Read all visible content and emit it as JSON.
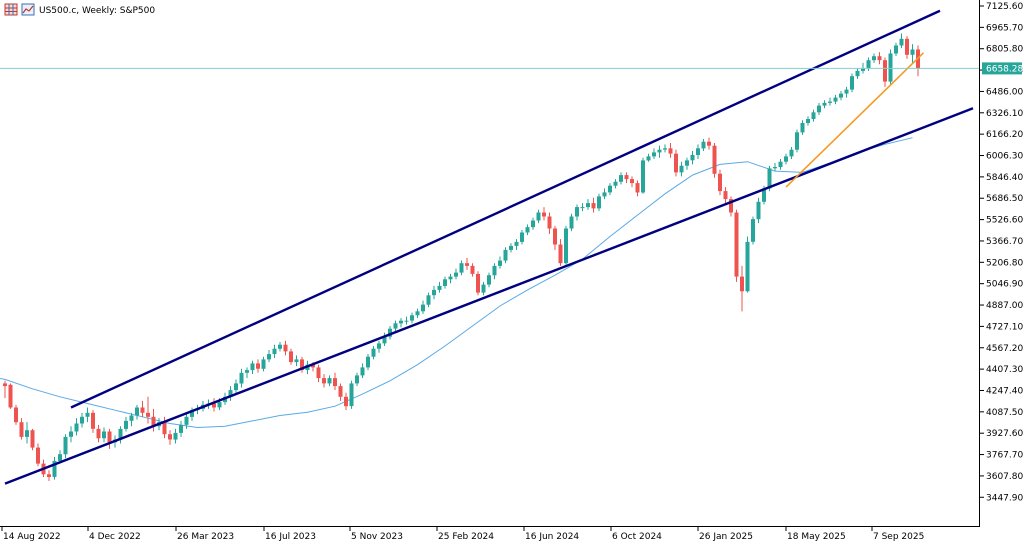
{
  "window": {
    "title": "US500.c, Weekly:  S&P500",
    "icons": [
      "chart-grid-icon",
      "chart-type-icon"
    ]
  },
  "colors": {
    "background": "#ffffff",
    "bull_candle": "#26a69a",
    "bear_candle": "#ef5350",
    "channel": "#000080",
    "trendline": "#f59a23",
    "moving_average": "#5aa9e6",
    "price_line": "#7fd1cf",
    "price_label_bg": "#26a69a",
    "price_label_text": "#ffffff"
  },
  "chart_data": {
    "type": "candlestick",
    "instrument": "US500.c",
    "timeframe": "Weekly",
    "title": "US500.c, Weekly:  S&P500",
    "ylim": [
      3367.6,
      7125.6
    ],
    "y_ticks": [
      "7125.60",
      "6965.70",
      "6805.80",
      "6646.00",
      "6486.00",
      "6326.10",
      "6166.20",
      "6006.30",
      "5846.40",
      "5686.50",
      "5526.60",
      "5366.70",
      "5206.80",
      "5046.90",
      "4887.00",
      "4727.10",
      "4567.20",
      "4407.30",
      "4247.40",
      "4087.50",
      "3927.60",
      "3767.70",
      "3607.80",
      "3447.90"
    ],
    "x_ticks": [
      "14 Aug 2022",
      "4 Dec 2022",
      "26 Mar 2023",
      "16 Jul 2023",
      "5 Nov 2023",
      "25 Feb 2024",
      "16 Jun 2024",
      "6 Oct 2024",
      "26 Jan 2025",
      "18 May 2025",
      "7 Sep 2025"
    ],
    "current_price": "6658.28",
    "current_price_value": 6658.28,
    "grid": false,
    "legend": "none",
    "channel_lines": [
      {
        "name": "upper-channel",
        "start": {
          "week": 12,
          "price": 4120
        },
        "end": {
          "week": 170,
          "price": 7090
        }
      },
      {
        "name": "lower-channel",
        "start": {
          "week": 0,
          "price": 3550
        },
        "end": {
          "week": 176,
          "price": 6360
        }
      }
    ],
    "trendline": {
      "start": {
        "week": 142,
        "price": 5770
      },
      "end": {
        "week": 167,
        "price": 6775
      }
    },
    "moving_average": [
      [
        -7,
        4380
      ],
      [
        0,
        4330
      ],
      [
        5,
        4260
      ],
      [
        10,
        4200
      ],
      [
        15,
        4150
      ],
      [
        20,
        4100
      ],
      [
        25,
        4050
      ],
      [
        30,
        4000
      ],
      [
        35,
        3970
      ],
      [
        40,
        3980
      ],
      [
        45,
        4020
      ],
      [
        50,
        4060
      ],
      [
        55,
        4085
      ],
      [
        60,
        4130
      ],
      [
        65,
        4220
      ],
      [
        70,
        4320
      ],
      [
        75,
        4440
      ],
      [
        80,
        4580
      ],
      [
        85,
        4730
      ],
      [
        90,
        4880
      ],
      [
        95,
        5000
      ],
      [
        100,
        5110
      ],
      [
        105,
        5230
      ],
      [
        110,
        5400
      ],
      [
        115,
        5560
      ],
      [
        120,
        5720
      ],
      [
        125,
        5860
      ],
      [
        130,
        5940
      ],
      [
        135,
        5960
      ],
      [
        140,
        5890
      ],
      [
        145,
        5880
      ],
      [
        150,
        5950
      ],
      [
        155,
        6030
      ],
      [
        160,
        6090
      ],
      [
        165,
        6140
      ]
    ],
    "candles": [
      [
        4300,
        4280,
        4320,
        4190
      ],
      [
        4290,
        4120,
        4300,
        4110
      ],
      [
        4120,
        4010,
        4140,
        3990
      ],
      [
        4010,
        3900,
        4040,
        3880
      ],
      [
        3900,
        3950,
        4010,
        3850
      ],
      [
        3950,
        3820,
        3960,
        3800
      ],
      [
        3820,
        3700,
        3850,
        3680
      ],
      [
        3700,
        3620,
        3730,
        3600
      ],
      [
        3620,
        3600,
        3650,
        3570
      ],
      [
        3600,
        3720,
        3750,
        3580
      ],
      [
        3720,
        3770,
        3800,
        3700
      ],
      [
        3770,
        3900,
        3920,
        3740
      ],
      [
        3900,
        3940,
        3980,
        3860
      ],
      [
        3940,
        4000,
        4040,
        3910
      ],
      [
        4000,
        4050,
        4080,
        3970
      ],
      [
        4050,
        4080,
        4120,
        4010
      ],
      [
        4080,
        3960,
        4100,
        3930
      ],
      [
        3960,
        3890,
        3990,
        3860
      ],
      [
        3890,
        3940,
        3970,
        3860
      ],
      [
        3940,
        3860,
        3960,
        3810
      ],
      [
        3860,
        3880,
        3910,
        3820
      ],
      [
        3880,
        3960,
        3980,
        3850
      ],
      [
        3960,
        4020,
        4050,
        3940
      ],
      [
        4020,
        4060,
        4080,
        3980
      ],
      [
        4060,
        4120,
        4140,
        4030
      ],
      [
        4120,
        4080,
        4170,
        4050
      ],
      [
        4080,
        4050,
        4200,
        4000
      ],
      [
        4050,
        3980,
        4110,
        3940
      ],
      [
        3980,
        4010,
        4040,
        3950
      ],
      [
        4010,
        3920,
        4050,
        3890
      ],
      [
        3920,
        3880,
        3950,
        3840
      ],
      [
        3880,
        3930,
        3960,
        3850
      ],
      [
        3930,
        3990,
        4020,
        3900
      ],
      [
        3990,
        4050,
        4080,
        3960
      ],
      [
        4050,
        4100,
        4120,
        4020
      ],
      [
        4100,
        4110,
        4140,
        4070
      ],
      [
        4110,
        4140,
        4170,
        4090
      ],
      [
        4140,
        4150,
        4180,
        4110
      ],
      [
        4150,
        4120,
        4190,
        4090
      ],
      [
        4120,
        4160,
        4190,
        4100
      ],
      [
        4160,
        4200,
        4230,
        4140
      ],
      [
        4200,
        4250,
        4280,
        4170
      ],
      [
        4250,
        4300,
        4330,
        4220
      ],
      [
        4300,
        4380,
        4410,
        4270
      ],
      [
        4380,
        4400,
        4420,
        4340
      ],
      [
        4400,
        4450,
        4470,
        4370
      ],
      [
        4450,
        4410,
        4480,
        4380
      ],
      [
        4410,
        4480,
        4500,
        4390
      ],
      [
        4480,
        4520,
        4550,
        4460
      ],
      [
        4520,
        4560,
        4590,
        4490
      ],
      [
        4560,
        4590,
        4610,
        4540
      ],
      [
        4590,
        4540,
        4620,
        4510
      ],
      [
        4540,
        4460,
        4560,
        4440
      ],
      [
        4460,
        4480,
        4510,
        4430
      ],
      [
        4480,
        4400,
        4500,
        4380
      ],
      [
        4400,
        4440,
        4470,
        4370
      ],
      [
        4440,
        4420,
        4460,
        4390
      ],
      [
        4420,
        4340,
        4440,
        4310
      ],
      [
        4340,
        4300,
        4370,
        4270
      ],
      [
        4300,
        4340,
        4360,
        4280
      ],
      [
        4340,
        4280,
        4380,
        4250
      ],
      [
        4280,
        4200,
        4300,
        4170
      ],
      [
        4200,
        4130,
        4230,
        4100
      ],
      [
        4130,
        4300,
        4320,
        4110
      ],
      [
        4300,
        4360,
        4380,
        4280
      ],
      [
        4360,
        4420,
        4450,
        4340
      ],
      [
        4420,
        4500,
        4520,
        4400
      ],
      [
        4500,
        4560,
        4580,
        4480
      ],
      [
        4560,
        4600,
        4620,
        4530
      ],
      [
        4600,
        4650,
        4680,
        4580
      ],
      [
        4650,
        4710,
        4730,
        4630
      ],
      [
        4710,
        4750,
        4770,
        4690
      ],
      [
        4750,
        4770,
        4790,
        4720
      ],
      [
        4770,
        4770,
        4800,
        4740
      ],
      [
        4770,
        4810,
        4830,
        4750
      ],
      [
        4810,
        4840,
        4860,
        4790
      ],
      [
        4840,
        4890,
        4920,
        4820
      ],
      [
        4890,
        4960,
        4980,
        4870
      ],
      [
        4960,
        5000,
        5030,
        4930
      ],
      [
        5000,
        5030,
        5060,
        4980
      ],
      [
        5030,
        5080,
        5100,
        5010
      ],
      [
        5080,
        5100,
        5120,
        5050
      ],
      [
        5100,
        5130,
        5160,
        5080
      ],
      [
        5130,
        5200,
        5220,
        5110
      ],
      [
        5200,
        5180,
        5240,
        5150
      ],
      [
        5180,
        5120,
        5200,
        5100
      ],
      [
        5120,
        4980,
        5140,
        4960
      ],
      [
        4980,
        5040,
        5060,
        4960
      ],
      [
        5040,
        5110,
        5130,
        5020
      ],
      [
        5110,
        5180,
        5200,
        5080
      ],
      [
        5180,
        5220,
        5250,
        5160
      ],
      [
        5220,
        5300,
        5320,
        5200
      ],
      [
        5300,
        5330,
        5350,
        5280
      ],
      [
        5330,
        5360,
        5380,
        5300
      ],
      [
        5360,
        5430,
        5450,
        5340
      ],
      [
        5430,
        5470,
        5490,
        5410
      ],
      [
        5470,
        5520,
        5540,
        5450
      ],
      [
        5520,
        5580,
        5600,
        5500
      ],
      [
        5580,
        5550,
        5620,
        5520
      ],
      [
        5550,
        5460,
        5580,
        5420
      ],
      [
        5460,
        5340,
        5480,
        5300
      ],
      [
        5340,
        5200,
        5380,
        5180
      ],
      [
        5200,
        5460,
        5480,
        5190
      ],
      [
        5460,
        5550,
        5570,
        5440
      ],
      [
        5550,
        5620,
        5640,
        5520
      ],
      [
        5620,
        5620,
        5650,
        5590
      ],
      [
        5620,
        5650,
        5680,
        5600
      ],
      [
        5650,
        5610,
        5690,
        5580
      ],
      [
        5610,
        5700,
        5720,
        5590
      ],
      [
        5700,
        5730,
        5760,
        5680
      ],
      [
        5730,
        5780,
        5800,
        5710
      ],
      [
        5780,
        5810,
        5830,
        5760
      ],
      [
        5810,
        5860,
        5880,
        5790
      ],
      [
        5860,
        5830,
        5880,
        5800
      ],
      [
        5830,
        5800,
        5850,
        5770
      ],
      [
        5800,
        5730,
        5820,
        5700
      ],
      [
        5730,
        5970,
        5990,
        5720
      ],
      [
        5970,
        6000,
        6020,
        5960
      ],
      [
        6000,
        6030,
        6060,
        5980
      ],
      [
        6030,
        6050,
        6080,
        5990
      ],
      [
        6050,
        6060,
        6090,
        6030
      ],
      [
        6060,
        6020,
        6100,
        5990
      ],
      [
        6020,
        5880,
        6050,
        5850
      ],
      [
        5880,
        5930,
        5960,
        5850
      ],
      [
        5930,
        5970,
        5990,
        5900
      ],
      [
        5970,
        6010,
        6040,
        5940
      ],
      [
        6010,
        6060,
        6090,
        5980
      ],
      [
        6060,
        6110,
        6130,
        6040
      ],
      [
        6110,
        6080,
        6140,
        6050
      ],
      [
        6080,
        5870,
        6100,
        5840
      ],
      [
        5870,
        5740,
        5900,
        5710
      ],
      [
        5740,
        5680,
        5770,
        5650
      ],
      [
        5680,
        5580,
        5700,
        5550
      ],
      [
        5580,
        5100,
        5600,
        5060
      ],
      [
        5100,
        4990,
        5180,
        4840
      ],
      [
        4990,
        5360,
        5400,
        4980
      ],
      [
        5360,
        5530,
        5550,
        5340
      ],
      [
        5530,
        5660,
        5690,
        5500
      ],
      [
        5660,
        5760,
        5780,
        5640
      ],
      [
        5760,
        5910,
        5930,
        5740
      ],
      [
        5910,
        5920,
        5950,
        5890
      ],
      [
        5920,
        5960,
        5980,
        5900
      ],
      [
        5960,
        6000,
        6020,
        5940
      ],
      [
        6000,
        6050,
        6070,
        5980
      ],
      [
        6050,
        6180,
        6200,
        6030
      ],
      [
        6180,
        6250,
        6270,
        6160
      ],
      [
        6250,
        6280,
        6300,
        6230
      ],
      [
        6280,
        6330,
        6350,
        6260
      ],
      [
        6330,
        6380,
        6400,
        6310
      ],
      [
        6380,
        6400,
        6420,
        6360
      ],
      [
        6400,
        6410,
        6440,
        6380
      ],
      [
        6410,
        6440,
        6460,
        6390
      ],
      [
        6440,
        6470,
        6490,
        6420
      ],
      [
        6470,
        6500,
        6520,
        6440
      ],
      [
        6500,
        6600,
        6620,
        6480
      ],
      [
        6600,
        6640,
        6660,
        6580
      ],
      [
        6640,
        6660,
        6700,
        6620
      ],
      [
        6660,
        6720,
        6740,
        6640
      ],
      [
        6720,
        6750,
        6770,
        6700
      ],
      [
        6750,
        6720,
        6780,
        6690
      ],
      [
        6720,
        6560,
        6740,
        6520
      ],
      [
        6560,
        6770,
        6800,
        6540
      ],
      [
        6770,
        6830,
        6850,
        6750
      ],
      [
        6830,
        6880,
        6920,
        6810
      ],
      [
        6880,
        6760,
        6900,
        6730
      ],
      [
        6760,
        6800,
        6840,
        6700
      ],
      [
        6800,
        6658,
        6830,
        6600
      ]
    ]
  }
}
